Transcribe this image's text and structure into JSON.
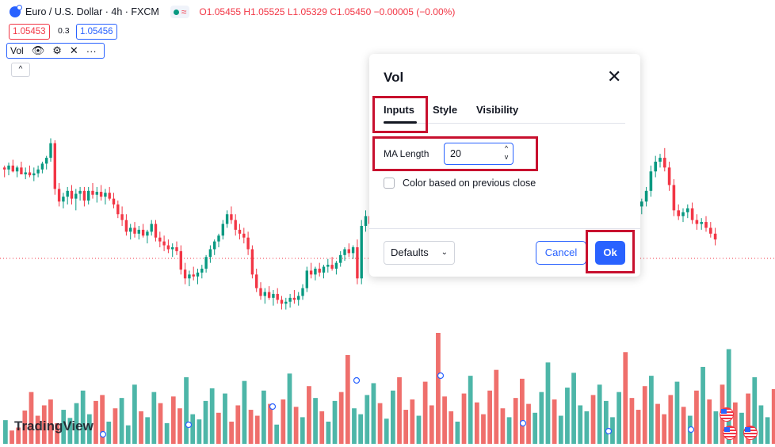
{
  "header": {
    "symbol_title": "Euro / U.S. Dollar · 4h · FXCM",
    "ohlc": "O1.05455 H1.05525 L1.05329 C1.05450 −0.00005 (−0.00%)",
    "wave_glyph": "≈",
    "sell_price": "1.05453",
    "spread": "0.3",
    "buy_price": "1.05456"
  },
  "indicator_legend": {
    "name": "Vol",
    "icons": [
      "eye-icon",
      "gear-icon",
      "close-icon",
      "more-icon"
    ],
    "eye": "👁",
    "gear": "⚙",
    "close": "✕",
    "more": "···",
    "collapse": "^"
  },
  "watermark": "TradingView",
  "dialog": {
    "title": "Vol",
    "close": "✕",
    "tabs": [
      {
        "label": "Inputs",
        "active": true
      },
      {
        "label": "Style",
        "active": false
      },
      {
        "label": "Visibility",
        "active": false
      }
    ],
    "ma_length_label": "MA Length",
    "ma_length_value": "20",
    "stepper_up": "^",
    "stepper_down": "v",
    "checkbox_label": "Color based on previous close",
    "checkbox_checked": false,
    "defaults_label": "Defaults",
    "defaults_chevron": "⌄",
    "cancel_label": "Cancel",
    "ok_label": "Ok"
  },
  "colors": {
    "up": "#089981",
    "down": "#f23645",
    "vol_up": "#4db6a8",
    "vol_down": "#ef6f6c",
    "accent": "#2962ff",
    "highlight": "#c8102e"
  },
  "chart_data": {
    "type": "candlestick",
    "current_price": 1.0545,
    "candles": [
      [
        1.061,
        1.0612,
        1.06,
        1.0608
      ],
      [
        1.0608,
        1.0615,
        1.0602,
        1.0612
      ],
      [
        1.0612,
        1.0618,
        1.0605,
        1.0606
      ],
      [
        1.0606,
        1.0612,
        1.06,
        1.061
      ],
      [
        1.061,
        1.0616,
        1.0604,
        1.0603
      ],
      [
        1.0603,
        1.061,
        1.0598,
        1.0605
      ],
      [
        1.0605,
        1.0612,
        1.06,
        1.0602
      ],
      [
        1.0602,
        1.061,
        1.0596,
        1.0604
      ],
      [
        1.0604,
        1.0612,
        1.06,
        1.0608
      ],
      [
        1.0608,
        1.0616,
        1.0604,
        1.0614
      ],
      [
        1.0614,
        1.0622,
        1.0608,
        1.062
      ],
      [
        1.062,
        1.064,
        1.0616,
        1.0635
      ],
      [
        1.0635,
        1.0638,
        1.0582,
        1.0588
      ],
      [
        1.0588,
        1.0594,
        1.057,
        1.0575
      ],
      [
        1.0575,
        1.0584,
        1.0568,
        1.058
      ],
      [
        1.058,
        1.059,
        1.0572,
        1.0586
      ],
      [
        1.0586,
        1.0592,
        1.0572,
        1.0578
      ],
      [
        1.0578,
        1.0588,
        1.0566,
        1.0583
      ],
      [
        1.0583,
        1.059,
        1.0576,
        1.0586
      ],
      [
        1.0586,
        1.059,
        1.057,
        1.0576
      ],
      [
        1.0576,
        1.059,
        1.0572,
        1.0586
      ],
      [
        1.0586,
        1.0594,
        1.0578,
        1.0582
      ],
      [
        1.0582,
        1.059,
        1.0574,
        1.0585
      ],
      [
        1.0585,
        1.0592,
        1.0576,
        1.058
      ],
      [
        1.058,
        1.0588,
        1.0572,
        1.0584
      ],
      [
        1.0584,
        1.059,
        1.0576,
        1.0578
      ],
      [
        1.0578,
        1.0584,
        1.0568,
        1.0572
      ],
      [
        1.0572,
        1.0576,
        1.0558,
        1.0562
      ],
      [
        1.0562,
        1.057,
        1.055,
        1.0556
      ],
      [
        1.0556,
        1.0562,
        1.054,
        1.0544
      ],
      [
        1.0544,
        1.0552,
        1.0536,
        1.0548
      ],
      [
        1.0548,
        1.0554,
        1.0538,
        1.0542
      ],
      [
        1.0542,
        1.055,
        1.0536,
        1.0546
      ],
      [
        1.0546,
        1.0552,
        1.0538,
        1.054
      ],
      [
        1.054,
        1.0546,
        1.0532,
        1.0544
      ],
      [
        1.0544,
        1.0556,
        1.054,
        1.0552
      ],
      [
        1.0552,
        1.0556,
        1.0534,
        1.0538
      ],
      [
        1.0538,
        1.0544,
        1.0528,
        1.0534
      ],
      [
        1.0534,
        1.054,
        1.0524,
        1.053
      ],
      [
        1.053,
        1.0536,
        1.0522,
        1.0526
      ],
      [
        1.0526,
        1.0532,
        1.0518,
        1.0528
      ],
      [
        1.0528,
        1.0534,
        1.052,
        1.0524
      ],
      [
        1.0524,
        1.053,
        1.05,
        1.0505
      ],
      [
        1.0505,
        1.0512,
        1.049,
        1.0496
      ],
      [
        1.0496,
        1.0504,
        1.0488,
        1.05
      ],
      [
        1.05,
        1.0508,
        1.0494,
        1.0498
      ],
      [
        1.0498,
        1.0506,
        1.049,
        1.0502
      ],
      [
        1.0502,
        1.051,
        1.0496,
        1.0506
      ],
      [
        1.0506,
        1.052,
        1.0502,
        1.0518
      ],
      [
        1.0518,
        1.053,
        1.0512,
        1.0526
      ],
      [
        1.0526,
        1.0536,
        1.052,
        1.0534
      ],
      [
        1.0534,
        1.0542,
        1.0528,
        1.054
      ],
      [
        1.054,
        1.0556,
        1.0536,
        1.0552
      ],
      [
        1.0552,
        1.0566,
        1.0548,
        1.0562
      ],
      [
        1.0562,
        1.057,
        1.0552,
        1.0556
      ],
      [
        1.0556,
        1.0562,
        1.054,
        1.0546
      ],
      [
        1.0546,
        1.0552,
        1.0536,
        1.0542
      ],
      [
        1.0542,
        1.0548,
        1.0532,
        1.0538
      ],
      [
        1.0538,
        1.0544,
        1.052,
        1.0526
      ],
      [
        1.0526,
        1.053,
        1.0496,
        1.05
      ],
      [
        1.05,
        1.0506,
        1.0482,
        1.0486
      ],
      [
        1.0486,
        1.0492,
        1.0474,
        1.0478
      ],
      [
        1.0478,
        1.0486,
        1.047,
        1.0482
      ],
      [
        1.0482,
        1.0488,
        1.0474,
        1.0476
      ],
      [
        1.0476,
        1.0484,
        1.0468,
        1.048
      ],
      [
        1.048,
        1.0486,
        1.047,
        1.0474
      ],
      [
        1.0474,
        1.0478,
        1.0464,
        1.047
      ],
      [
        1.047,
        1.0476,
        1.0464,
        1.0472
      ],
      [
        1.0472,
        1.048,
        1.0466,
        1.0476
      ],
      [
        1.0476,
        1.0484,
        1.047,
        1.0474
      ],
      [
        1.0474,
        1.0482,
        1.0468,
        1.0478
      ],
      [
        1.0478,
        1.049,
        1.0474,
        1.0486
      ],
      [
        1.0486,
        1.0508,
        1.0482,
        1.0504
      ],
      [
        1.0504,
        1.0512,
        1.0496,
        1.05
      ],
      [
        1.05,
        1.0508,
        1.0494,
        1.0506
      ],
      [
        1.0506,
        1.0512,
        1.0498,
        1.0502
      ],
      [
        1.0502,
        1.051,
        1.0496,
        1.0508
      ],
      [
        1.0508,
        1.0516,
        1.0502,
        1.051
      ],
      [
        1.051,
        1.0518,
        1.0504,
        1.0506
      ],
      [
        1.0506,
        1.0514,
        1.05,
        1.0512
      ],
      [
        1.0512,
        1.0524,
        1.0508,
        1.052
      ],
      [
        1.052,
        1.0528,
        1.0514,
        1.0526
      ],
      [
        1.0526,
        1.0532,
        1.0518,
        1.0522
      ],
      [
        1.0522,
        1.053,
        1.0516,
        1.0528
      ],
      [
        1.0528,
        1.0536,
        1.049,
        1.0496
      ],
      [
        1.0496,
        1.0556,
        1.049,
        1.055
      ],
      [
        1.055,
        1.0566,
        1.0544,
        1.056
      ],
      [
        1.056,
        1.0568,
        1.0548,
        1.0552
      ]
    ],
    "candles_right": [
      [
        1.051,
        1.0514,
        1.05,
        1.0503
      ],
      [
        1.0503,
        1.0508,
        1.0498,
        1.0506
      ],
      [
        1.057,
        1.0578,
        1.0562,
        1.0575
      ],
      [
        1.0575,
        1.059,
        1.057,
        1.0586
      ],
      [
        1.0586,
        1.0612,
        1.058,
        1.0606
      ],
      [
        1.0606,
        1.0622,
        1.06,
        1.0616
      ],
      [
        1.0616,
        1.0624,
        1.061,
        1.062
      ],
      [
        1.062,
        1.063,
        1.0606,
        1.061
      ],
      [
        1.061,
        1.0616,
        1.0586,
        1.0592
      ],
      [
        1.0592,
        1.0598,
        1.056,
        1.0566
      ],
      [
        1.0566,
        1.0572,
        1.0556,
        1.056
      ],
      [
        1.056,
        1.0568,
        1.0554,
        1.0564
      ],
      [
        1.0564,
        1.0572,
        1.0558,
        1.0568
      ],
      [
        1.0568,
        1.0574,
        1.0552,
        1.0556
      ],
      [
        1.0556,
        1.0562,
        1.0546,
        1.0552
      ],
      [
        1.0552,
        1.0558,
        1.0546,
        1.0554
      ],
      [
        1.0554,
        1.056,
        1.0544,
        1.0548
      ],
      [
        1.0548,
        1.0554,
        1.0538,
        1.0542
      ],
      [
        1.0542,
        1.0548,
        1.053,
        1.0536
      ]
    ],
    "volume": [
      32,
      18,
      22,
      45,
      70,
      38,
      52,
      60,
      28,
      46,
      35,
      55,
      72,
      40,
      58,
      66,
      30,
      48,
      62,
      25,
      80,
      44,
      36,
      70,
      55,
      28,
      64,
      48,
      90,
      40,
      33,
      58,
      75,
      42,
      68,
      30,
      52,
      85,
      46,
      38,
      72,
      54,
      26,
      60,
      95,
      50,
      36,
      78,
      62,
      44,
      30,
      58,
      70,
      120,
      48,
      40,
      66,
      82,
      55,
      34,
      72,
      90,
      46,
      60,
      38,
      84,
      52,
      150,
      64,
      44,
      30,
      68,
      92,
      56,
      40,
      72,
      100,
      48,
      36,
      62,
      88,
      54,
      42,
      70,
      110,
      60,
      38,
      76,
      96,
      52,
      44,
      66,
      80,
      58,
      36,
      70,
      124,
      62,
      46,
      78,
      92,
      54,
      40,
      66,
      84,
      50,
      38,
      72,
      104,
      60,
      44,
      80,
      128,
      56,
      42,
      68,
      90,
      52,
      36,
      74
    ]
  }
}
